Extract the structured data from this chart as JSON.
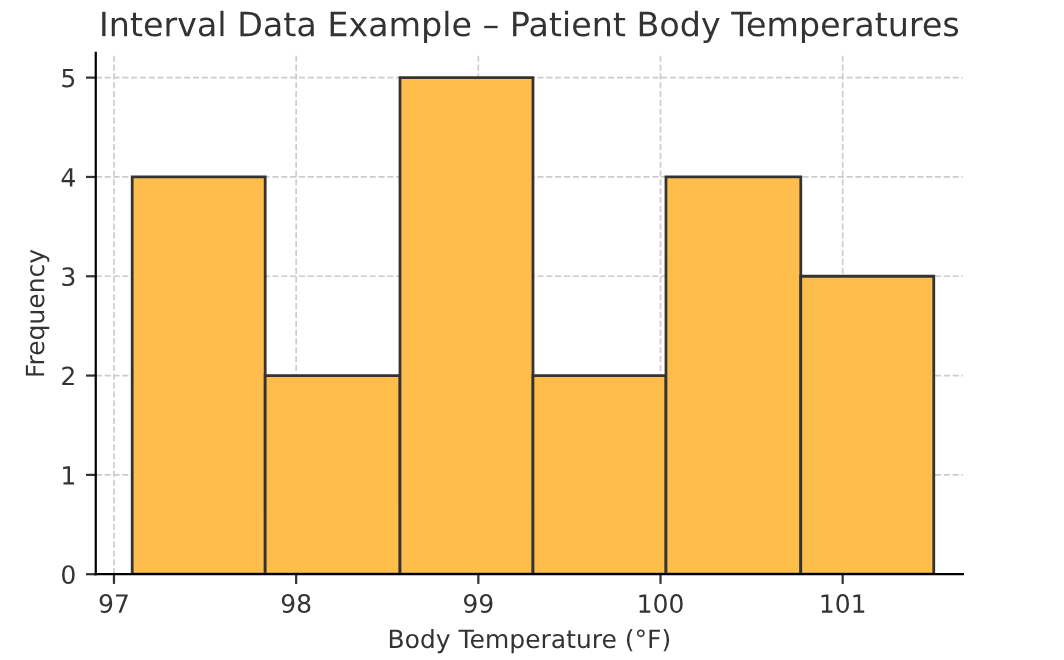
{
  "chart_data": {
    "type": "histogram",
    "title": "Interval Data Example – Patient Body Temperatures",
    "xlabel": "Body Temperature (°F)",
    "ylabel": "Frequency",
    "bins": [
      97.1,
      97.83,
      98.57,
      99.3,
      100.03,
      100.77,
      101.5
    ],
    "values": [
      4,
      2,
      5,
      2,
      4,
      3
    ],
    "color": "#ffbe4c",
    "xlim": [
      96.9,
      101.66
    ],
    "xticks": [
      97,
      98,
      99,
      100,
      101
    ],
    "ylim": [
      0,
      5.25
    ],
    "yticks": [
      0,
      1,
      2,
      3,
      4,
      5
    ],
    "grid": true
  }
}
